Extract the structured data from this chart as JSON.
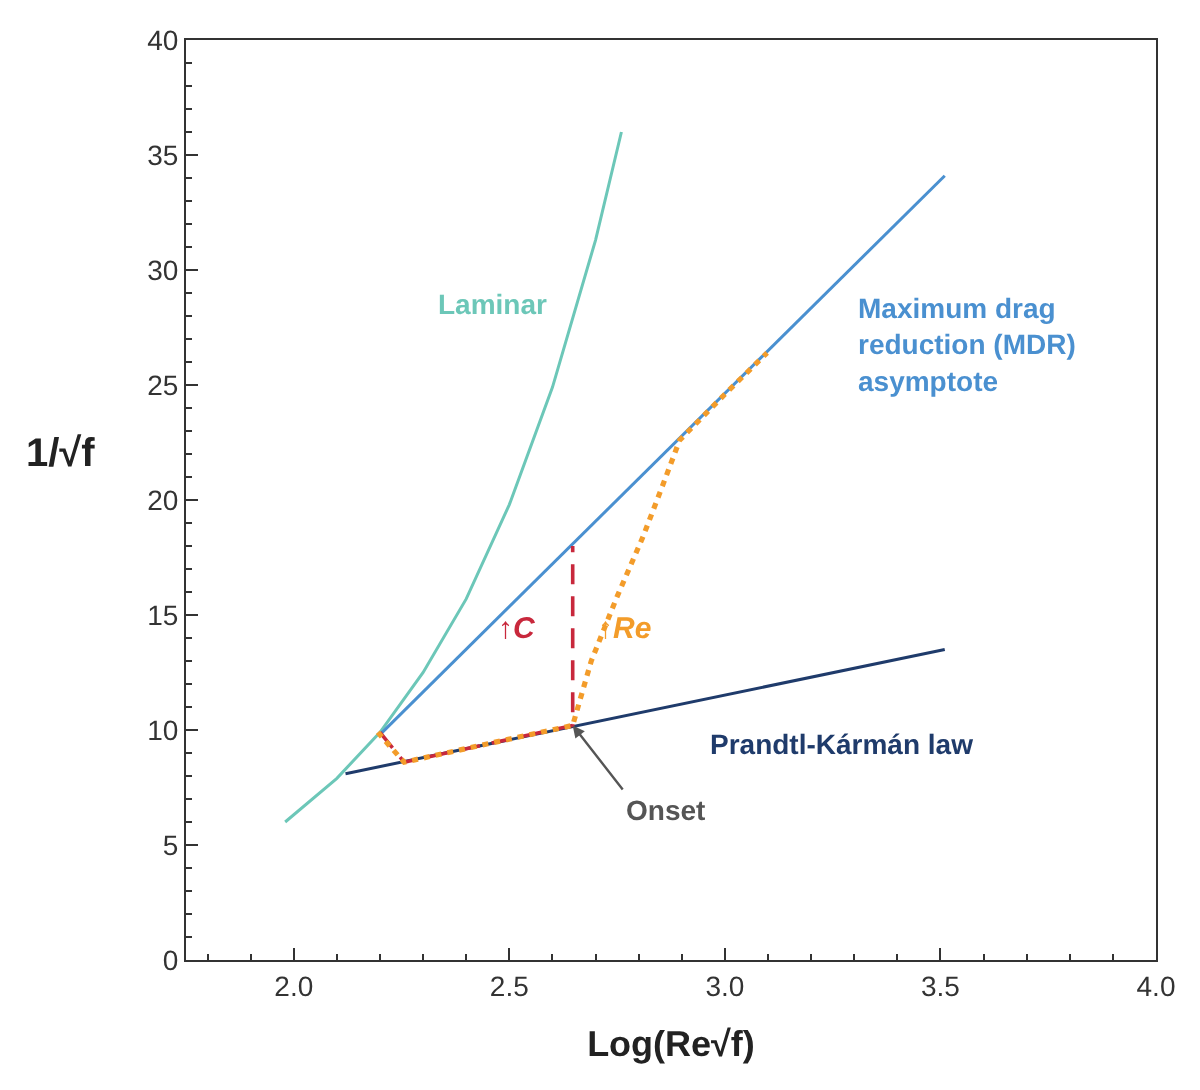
{
  "chart_data": {
    "type": "line",
    "xlabel": "Log(Re√f)",
    "ylabel": "1/√f",
    "xlim": [
      1.75,
      4.0
    ],
    "ylim": [
      0,
      40
    ],
    "xticks": [
      {
        "value": 2.0,
        "label": "2.0"
      },
      {
        "value": 2.5,
        "label": "2.5"
      },
      {
        "value": 3.0,
        "label": "3.0"
      },
      {
        "value": 3.5,
        "label": "3.5"
      },
      {
        "value": 4.0,
        "label": "4.0"
      }
    ],
    "yticks": [
      0,
      5,
      10,
      15,
      20,
      25,
      30,
      35,
      40
    ],
    "legend": false,
    "marker": "none",
    "series": [
      {
        "name": "Laminar",
        "color": "#6cc7b8",
        "x": [
          1.98,
          2.1,
          2.2,
          2.3,
          2.4,
          2.5,
          2.6,
          2.7,
          2.76
        ],
        "values": [
          6.0,
          7.9,
          9.9,
          12.5,
          15.7,
          19.8,
          24.9,
          31.3,
          36.0
        ],
        "line_style": "solid"
      },
      {
        "name": "Maximum drag reduction (MDR) asymptote",
        "color": "#4a90d0",
        "x": [
          2.2,
          3.51
        ],
        "values": [
          9.8,
          34.1
        ],
        "line_style": "solid"
      },
      {
        "name": "Prandtl-Kármán law",
        "color": "#1f3b6b",
        "x": [
          2.12,
          3.51
        ],
        "values": [
          8.1,
          13.5
        ],
        "line_style": "solid"
      },
      {
        "color": "#c8283c",
        "x": [
          2.2,
          2.256,
          2.647,
          2.647
        ],
        "values": [
          9.9,
          8.6,
          10.2,
          18.0
        ],
        "line_style": "dashed"
      },
      {
        "color": "#f39c2a",
        "x": [
          2.195,
          2.218,
          2.256,
          2.45,
          2.647,
          2.69,
          2.75,
          2.81,
          2.857,
          2.895,
          3.0,
          3.098
        ],
        "values": [
          9.9,
          9.4,
          8.6,
          9.4,
          10.2,
          13.0,
          15.8,
          18.4,
          20.7,
          22.6,
          24.6,
          26.4
        ],
        "line_style": "dotted"
      }
    ],
    "annotations": [
      "↑C",
      "↑Re",
      {
        "text": "Onset",
        "x": 2.647,
        "y": 10.2
      }
    ]
  }
}
